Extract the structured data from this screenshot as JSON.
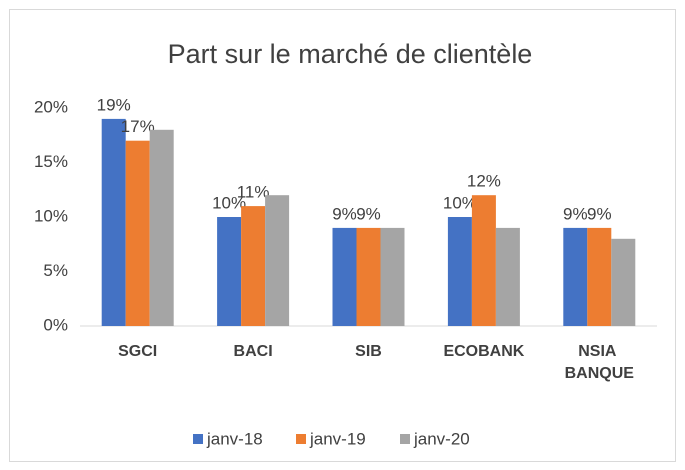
{
  "chart_data": {
    "type": "bar",
    "title": "Part sur le marché de clientèle",
    "categories": [
      "SGCI",
      "BACI",
      "SIB",
      "ECOBANK",
      "NSIA BANQUE"
    ],
    "series": [
      {
        "name": "janv-18",
        "color": "#4472c4",
        "values": [
          19,
          10,
          9,
          10,
          9
        ],
        "value_labels": [
          "19%",
          "10%",
          "9%",
          "10%",
          "9%"
        ]
      },
      {
        "name": "janv-19",
        "color": "#ed7d31",
        "values": [
          17,
          11,
          9,
          12,
          9
        ],
        "value_labels": [
          "17%",
          "11%",
          "9%",
          "12%",
          "9%"
        ]
      },
      {
        "name": "janv-20",
        "color": "#a5a5a5",
        "values": [
          18,
          12,
          9,
          9,
          8
        ]
      }
    ],
    "ylim": [
      0,
      20
    ],
    "yticks": [
      {
        "value": 0,
        "label": "0%"
      },
      {
        "value": 5,
        "label": "5%"
      },
      {
        "value": 10,
        "label": "10%"
      },
      {
        "value": 15,
        "label": "15%"
      },
      {
        "value": 20,
        "label": "20%"
      }
    ],
    "grid": false,
    "legend": "bottom"
  }
}
